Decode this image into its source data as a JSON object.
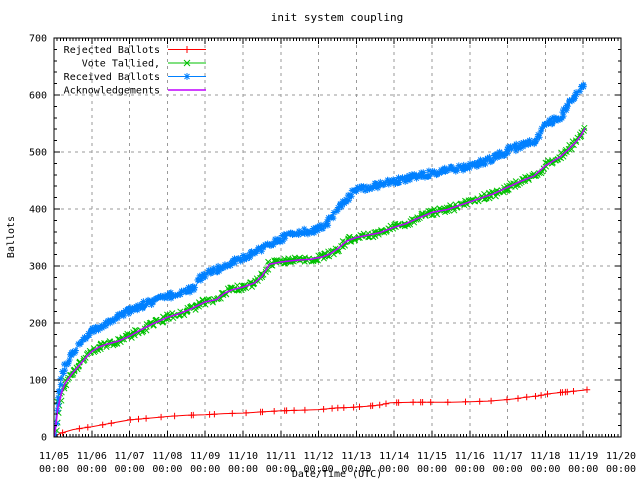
{
  "chart_data": {
    "type": "line",
    "title": "init system coupling",
    "xlabel": "Date/Time (UTC)",
    "ylabel": "Ballots",
    "x_tick_labels": [
      {
        "date": "11/05",
        "time": "00:00"
      },
      {
        "date": "11/06",
        "time": "00:00"
      },
      {
        "date": "11/07",
        "time": "00:00"
      },
      {
        "date": "11/08",
        "time": "00:00"
      },
      {
        "date": "11/09",
        "time": "00:00"
      },
      {
        "date": "11/10",
        "time": "00:00"
      },
      {
        "date": "11/11",
        "time": "00:00"
      },
      {
        "date": "11/12",
        "time": "00:00"
      },
      {
        "date": "11/13",
        "time": "00:00"
      },
      {
        "date": "11/14",
        "time": "00:00"
      },
      {
        "date": "11/15",
        "time": "00:00"
      },
      {
        "date": "11/16",
        "time": "00:00"
      },
      {
        "date": "11/17",
        "time": "00:00"
      },
      {
        "date": "11/18",
        "time": "00:00"
      },
      {
        "date": "11/19",
        "time": "00:00"
      },
      {
        "date": "11/20",
        "time": "00:00"
      }
    ],
    "y_ticks": [
      0,
      100,
      200,
      300,
      400,
      500,
      600,
      700
    ],
    "ylim": [
      0,
      700
    ],
    "x_range_days": [
      0,
      15
    ],
    "grid": true,
    "legend_position": "top-left",
    "x_unit": "days since 11/05 00:00",
    "series": [
      {
        "name": "Rejected Ballots",
        "color": "#ff0000",
        "marker": "plus",
        "marker_density": "sparse",
        "line_width": 1,
        "points": [
          [
            0,
            0
          ],
          [
            0.08,
            3
          ],
          [
            0.15,
            6
          ],
          [
            0.3,
            9
          ],
          [
            0.5,
            13
          ],
          [
            0.7,
            15
          ],
          [
            1.0,
            18
          ],
          [
            1.5,
            24
          ],
          [
            2.0,
            30
          ],
          [
            2.5,
            33
          ],
          [
            3.0,
            36
          ],
          [
            3.5,
            38
          ],
          [
            4.0,
            39
          ],
          [
            4.5,
            41
          ],
          [
            5.0,
            42
          ],
          [
            5.5,
            44
          ],
          [
            6.0,
            46
          ],
          [
            6.5,
            47
          ],
          [
            7.0,
            48
          ],
          [
            7.5,
            51
          ],
          [
            7.9,
            52
          ],
          [
            8.3,
            54
          ],
          [
            8.6,
            56
          ],
          [
            8.9,
            60
          ],
          [
            9.5,
            61
          ],
          [
            10.5,
            61
          ],
          [
            11.0,
            62
          ],
          [
            11.5,
            63
          ],
          [
            11.9,
            65
          ],
          [
            12.2,
            67
          ],
          [
            12.5,
            70
          ],
          [
            12.8,
            72
          ],
          [
            13.1,
            76
          ],
          [
            13.4,
            78
          ],
          [
            13.7,
            80
          ],
          [
            14.0,
            82
          ],
          [
            14.1,
            83
          ]
        ]
      },
      {
        "name": "Vote Tallied,",
        "color": "#00c000",
        "marker": "cross",
        "marker_density": "dense",
        "line_width": 1,
        "points": [
          [
            0,
            0
          ],
          [
            0.04,
            15
          ],
          [
            0.1,
            50
          ],
          [
            0.2,
            78
          ],
          [
            0.3,
            95
          ],
          [
            0.5,
            113
          ],
          [
            0.7,
            128
          ],
          [
            0.85,
            140
          ],
          [
            1.0,
            150
          ],
          [
            1.2,
            158
          ],
          [
            1.4,
            163
          ],
          [
            1.7,
            168
          ],
          [
            2.0,
            177
          ],
          [
            2.3,
            188
          ],
          [
            2.6,
            198
          ],
          [
            3.0,
            210
          ],
          [
            3.3,
            216
          ],
          [
            3.6,
            224
          ],
          [
            4.0,
            237
          ],
          [
            4.3,
            241
          ],
          [
            4.5,
            252
          ],
          [
            4.7,
            258
          ],
          [
            5.0,
            263
          ],
          [
            5.3,
            270
          ],
          [
            5.5,
            282
          ],
          [
            5.7,
            303
          ],
          [
            6.0,
            307
          ],
          [
            6.4,
            310
          ],
          [
            6.8,
            312
          ],
          [
            7.1,
            316
          ],
          [
            7.3,
            321
          ],
          [
            7.5,
            330
          ],
          [
            7.75,
            344
          ],
          [
            8.0,
            350
          ],
          [
            8.3,
            354
          ],
          [
            8.6,
            358
          ],
          [
            9.0,
            368
          ],
          [
            9.3,
            374
          ],
          [
            9.6,
            383
          ],
          [
            10.0,
            394
          ],
          [
            10.4,
            399
          ],
          [
            10.8,
            408
          ],
          [
            11.2,
            417
          ],
          [
            11.6,
            426
          ],
          [
            12.0,
            438
          ],
          [
            12.4,
            450
          ],
          [
            12.7,
            458
          ],
          [
            13.0,
            476
          ],
          [
            13.2,
            484
          ],
          [
            13.4,
            492
          ],
          [
            13.6,
            504
          ],
          [
            13.8,
            517
          ],
          [
            13.95,
            530
          ],
          [
            14.05,
            542
          ]
        ]
      },
      {
        "name": "Received Ballots",
        "color": "#0080ff",
        "marker": "asterisk",
        "marker_density": "dense",
        "line_width": 1,
        "points": [
          [
            0,
            0
          ],
          [
            0.04,
            25
          ],
          [
            0.1,
            70
          ],
          [
            0.2,
            105
          ],
          [
            0.3,
            124
          ],
          [
            0.5,
            148
          ],
          [
            0.7,
            165
          ],
          [
            1.0,
            185
          ],
          [
            1.3,
            197
          ],
          [
            1.6,
            208
          ],
          [
            2.0,
            222
          ],
          [
            2.4,
            232
          ],
          [
            2.8,
            242
          ],
          [
            3.0,
            247
          ],
          [
            3.4,
            255
          ],
          [
            3.7,
            260
          ],
          [
            3.85,
            276
          ],
          [
            4.0,
            285
          ],
          [
            4.4,
            297
          ],
          [
            4.8,
            308
          ],
          [
            5.0,
            315
          ],
          [
            5.3,
            323
          ],
          [
            5.6,
            334
          ],
          [
            5.9,
            344
          ],
          [
            6.1,
            352
          ],
          [
            6.5,
            358
          ],
          [
            6.9,
            364
          ],
          [
            7.15,
            372
          ],
          [
            7.4,
            392
          ],
          [
            7.7,
            415
          ],
          [
            7.9,
            428
          ],
          [
            8.1,
            435
          ],
          [
            8.45,
            440
          ],
          [
            8.8,
            446
          ],
          [
            9.2,
            452
          ],
          [
            9.6,
            457
          ],
          [
            10.0,
            462
          ],
          [
            10.4,
            467
          ],
          [
            10.8,
            473
          ],
          [
            11.2,
            479
          ],
          [
            11.6,
            489
          ],
          [
            12.0,
            502
          ],
          [
            12.4,
            512
          ],
          [
            12.7,
            519
          ],
          [
            12.85,
            526
          ],
          [
            13.0,
            549
          ],
          [
            13.2,
            555
          ],
          [
            13.45,
            561
          ],
          [
            13.65,
            588
          ],
          [
            13.85,
            604
          ],
          [
            14.0,
            616
          ],
          [
            14.05,
            622
          ]
        ]
      },
      {
        "name": "Acknowledgements",
        "color": "#c000ff",
        "marker": "none",
        "marker_density": "none",
        "line_width": 1.5,
        "points": [
          [
            0,
            0
          ],
          [
            0.04,
            15
          ],
          [
            0.1,
            50
          ],
          [
            0.2,
            78
          ],
          [
            0.3,
            95
          ],
          [
            0.5,
            113
          ],
          [
            0.7,
            128
          ],
          [
            0.85,
            140
          ],
          [
            1.0,
            150
          ],
          [
            1.2,
            158
          ],
          [
            1.4,
            163
          ],
          [
            1.7,
            168
          ],
          [
            2.0,
            177
          ],
          [
            2.3,
            188
          ],
          [
            2.6,
            198
          ],
          [
            3.0,
            210
          ],
          [
            3.3,
            216
          ],
          [
            3.6,
            224
          ],
          [
            4.0,
            237
          ],
          [
            4.3,
            241
          ],
          [
            4.5,
            252
          ],
          [
            4.7,
            258
          ],
          [
            5.0,
            263
          ],
          [
            5.3,
            270
          ],
          [
            5.5,
            282
          ],
          [
            5.7,
            303
          ],
          [
            6.0,
            307
          ],
          [
            6.4,
            310
          ],
          [
            6.8,
            312
          ],
          [
            7.1,
            316
          ],
          [
            7.3,
            321
          ],
          [
            7.5,
            330
          ],
          [
            7.75,
            344
          ],
          [
            8.0,
            350
          ],
          [
            8.3,
            354
          ],
          [
            8.6,
            358
          ],
          [
            9.0,
            368
          ],
          [
            9.3,
            374
          ],
          [
            9.6,
            383
          ],
          [
            10.0,
            394
          ],
          [
            10.4,
            399
          ],
          [
            10.8,
            408
          ],
          [
            11.2,
            417
          ],
          [
            11.6,
            426
          ],
          [
            12.0,
            438
          ],
          [
            12.4,
            450
          ],
          [
            12.7,
            458
          ],
          [
            13.0,
            476
          ],
          [
            13.2,
            484
          ],
          [
            13.4,
            492
          ],
          [
            13.6,
            504
          ],
          [
            13.8,
            517
          ],
          [
            13.95,
            530
          ],
          [
            14.05,
            542
          ]
        ]
      }
    ]
  },
  "style": {
    "background": "#ffffff",
    "border_color": "#000000",
    "grid_color": "#9a9a9a",
    "text_color": "#000000"
  }
}
